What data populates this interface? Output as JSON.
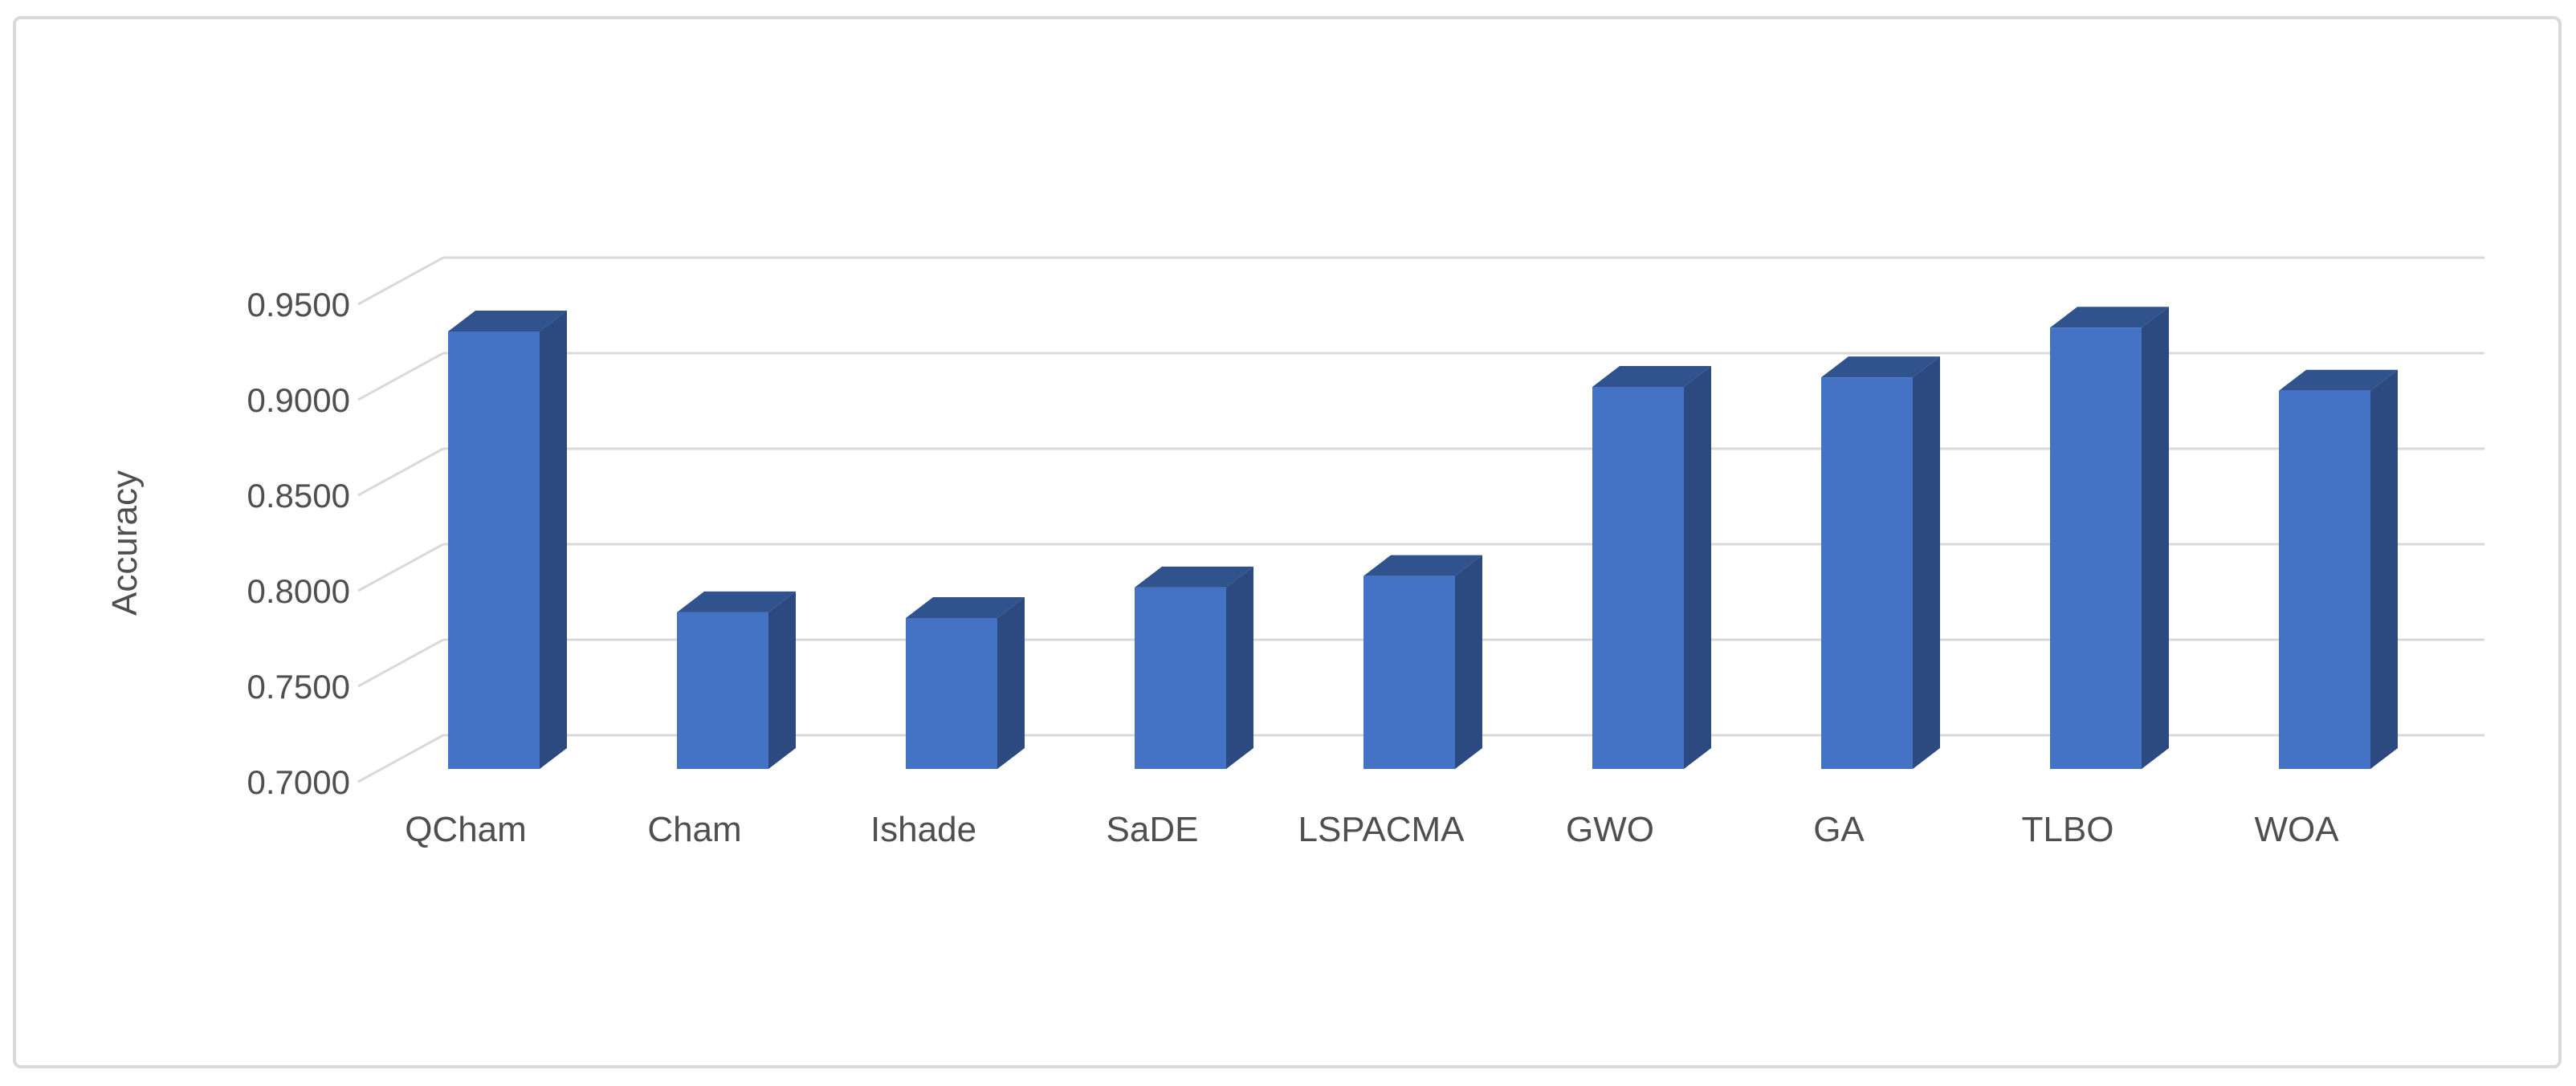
{
  "figure": {
    "background": "#ffffff",
    "border_color": "#d9d9d9"
  },
  "chart_data": {
    "type": "bar",
    "variant": "3d-clustered-column",
    "title": "",
    "xlabel": "",
    "ylabel": "Accuracy",
    "categories": [
      "QCham",
      "Cham",
      "Ishade",
      "SaDE",
      "LSPACMA",
      "GWO",
      "GA",
      "TLBO",
      "WOA"
    ],
    "values": [
      0.929,
      0.782,
      0.779,
      0.795,
      0.801,
      0.9,
      0.905,
      0.931,
      0.898
    ],
    "ylim": [
      0.7,
      0.95
    ],
    "ytick_step": 0.05,
    "yticks": [
      {
        "label": "0.9500",
        "value": 0.95
      },
      {
        "label": "0.9000",
        "value": 0.9
      },
      {
        "label": "0.8500",
        "value": 0.85
      },
      {
        "label": "0.8000",
        "value": 0.8
      },
      {
        "label": "0.7500",
        "value": 0.75
      },
      {
        "label": "0.7000",
        "value": 0.7
      }
    ],
    "grid": true,
    "legend": null,
    "colors": {
      "bar_front": "#4472c4",
      "bar_top": "#30538e",
      "bar_side": "#2c4a80",
      "gridline": "#d9d9d9",
      "axis_text": "#4f4f4f"
    }
  }
}
